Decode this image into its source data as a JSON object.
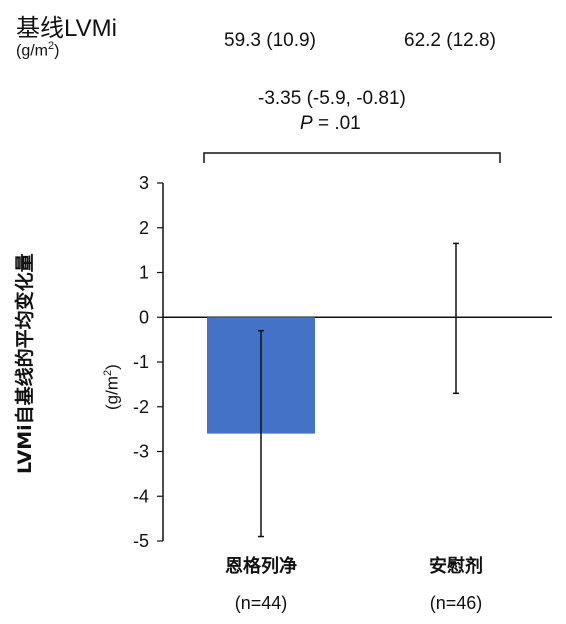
{
  "baseline": {
    "title": "基线LVMi",
    "unit_prefix": "(g/m",
    "unit_sup": "2",
    "unit_suffix": ")",
    "values": [
      "59.3 (10.9)",
      "62.2 (12.8)"
    ]
  },
  "comparison": {
    "difference": "-3.35 (-5.9, -0.81)",
    "p_label": "P",
    "p_value": " = .01"
  },
  "chart_data": {
    "type": "bar",
    "categories": [
      "恩格列净",
      "安慰剂"
    ],
    "category_n": [
      "(n=44)",
      "(n=46)"
    ],
    "values": [
      -2.6,
      0.0
    ],
    "error_low": [
      -4.9,
      -1.7
    ],
    "error_high": [
      -0.3,
      1.65
    ],
    "ylabel": "LVMi自基线的平均变化量",
    "ylabel_unit_prefix": "(g/m",
    "ylabel_unit_sup": "2",
    "ylabel_unit_suffix": ")",
    "ylim": [
      -5,
      3
    ],
    "yticks": [
      3,
      2,
      1,
      0,
      -1,
      -2,
      -3,
      -4,
      -5
    ],
    "grid": false,
    "bar_color": "#4472C4"
  }
}
